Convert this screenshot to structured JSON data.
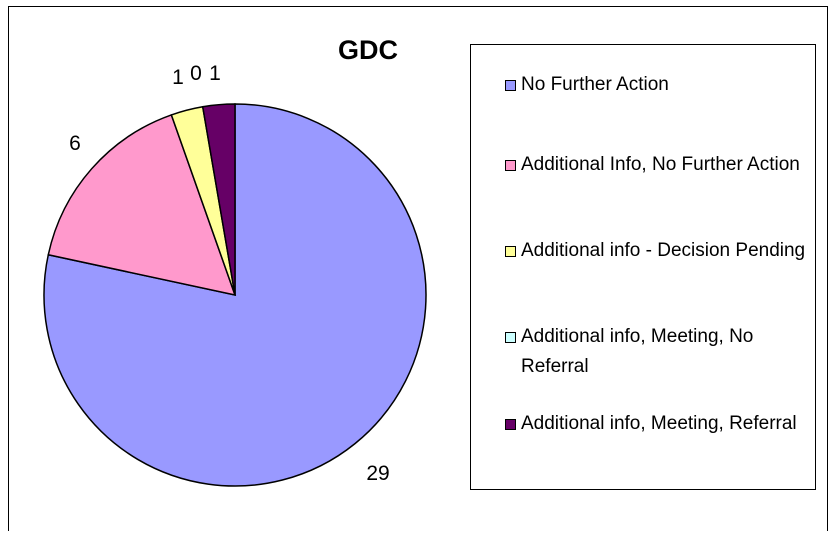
{
  "chart_data": {
    "type": "pie",
    "title": "GDC",
    "categories": [
      "No Further Action",
      "Additional Info, No Further Action",
      "Additional info - Decision Pending",
      "Additional info, Meeting, No Referral",
      "Additional info, Meeting, Referral"
    ],
    "values": [
      29,
      6,
      1,
      0,
      1
    ],
    "colors": [
      "#9999ff",
      "#ff99cc",
      "#ffff99",
      "#ccffff",
      "#660066"
    ],
    "legend_position": "right",
    "start": "12 o'clock, clockwise"
  }
}
